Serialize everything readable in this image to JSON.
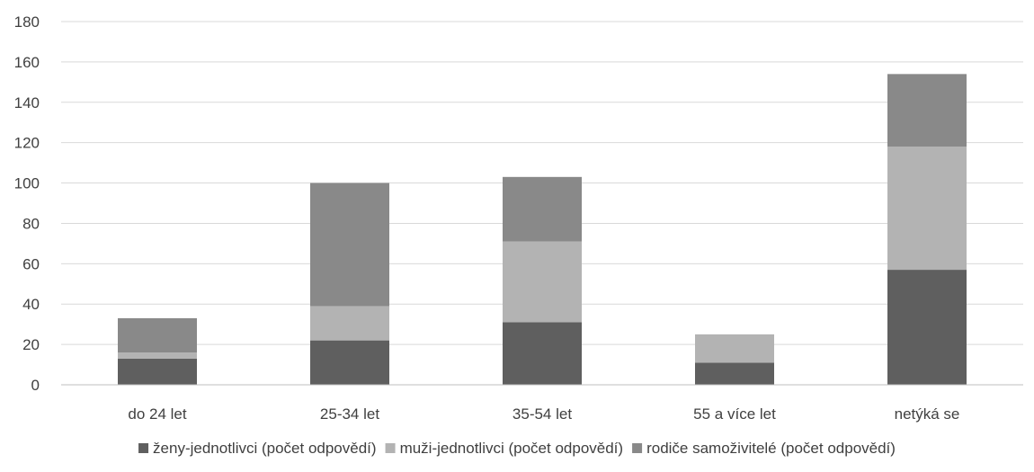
{
  "chart_data": {
    "type": "bar",
    "stacked": true,
    "categories": [
      "do 24 let",
      "25-34 let",
      "35-54 let",
      "55 a více let",
      "netýká se"
    ],
    "series": [
      {
        "name": "ženy-jednotlivci (počet odpovědí)",
        "color": "#5f5f5f",
        "values": [
          13,
          22,
          31,
          11,
          57
        ]
      },
      {
        "name": "muži-jednotlivci (počet odpovědí)",
        "color": "#b3b3b3",
        "values": [
          3,
          17,
          40,
          14,
          61
        ]
      },
      {
        "name": "rodiče samoživitelé (počet odpovědí)",
        "color": "#898989",
        "values": [
          17,
          61,
          32,
          0,
          36
        ]
      }
    ],
    "ylim": [
      0,
      180
    ],
    "yticks": [
      0,
      20,
      40,
      60,
      80,
      100,
      120,
      140,
      160,
      180
    ],
    "grid": true,
    "legend_position": "bottom",
    "title": "",
    "xlabel": "",
    "ylabel": ""
  }
}
